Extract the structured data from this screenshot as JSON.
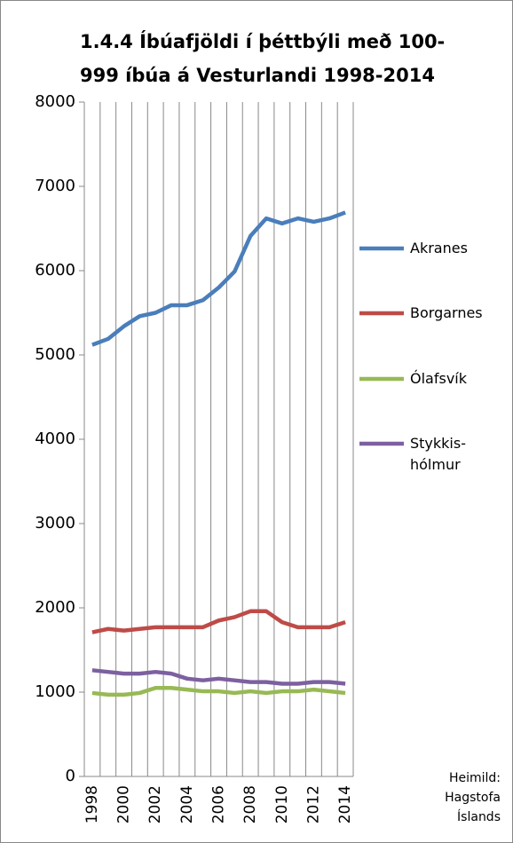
{
  "chart_data": {
    "type": "line",
    "title": [
      "1.4.4 Íbúafjöldi í þéttbýli með 100-",
      "999  íbúa á Vesturlandi 1998-2014"
    ],
    "categories": [
      "1998",
      null,
      "2000",
      null,
      "2002",
      null,
      "2004",
      null,
      "2006",
      null,
      "2008",
      null,
      "2010",
      null,
      "2012",
      null,
      "2014"
    ],
    "series": [
      {
        "name": "Akranes",
        "color": "#4a7ebb",
        "values": [
          5120,
          5190,
          5340,
          5460,
          5500,
          5590,
          5590,
          5650,
          5800,
          5990,
          6410,
          6620,
          6560,
          6620,
          6580,
          6620,
          6690
        ]
      },
      {
        "name": "Borgarnes",
        "color": "#be4b48",
        "values": [
          1710,
          1750,
          1730,
          1750,
          1770,
          1770,
          1770,
          1770,
          1850,
          1890,
          1960,
          1960,
          1830,
          1770,
          1770,
          1770,
          1830
        ]
      },
      {
        "name": "Ólafsvík",
        "color": "#98b954",
        "values": [
          990,
          970,
          970,
          990,
          1050,
          1050,
          1030,
          1010,
          1010,
          990,
          1010,
          990,
          1010,
          1010,
          1030,
          1010,
          990
        ]
      },
      {
        "name": "Stykkis-hólmur",
        "color": "#7d60a0",
        "values": [
          1260,
          1240,
          1220,
          1220,
          1240,
          1220,
          1160,
          1140,
          1160,
          1140,
          1120,
          1120,
          1100,
          1100,
          1120,
          1120,
          1100
        ]
      }
    ],
    "ylim": [
      0,
      8000
    ],
    "yticks": [
      0,
      1000,
      2000,
      3000,
      4000,
      5000,
      6000,
      7000,
      8000
    ],
    "legend": "right",
    "source": "Heimild: Hagstofa Íslands"
  }
}
